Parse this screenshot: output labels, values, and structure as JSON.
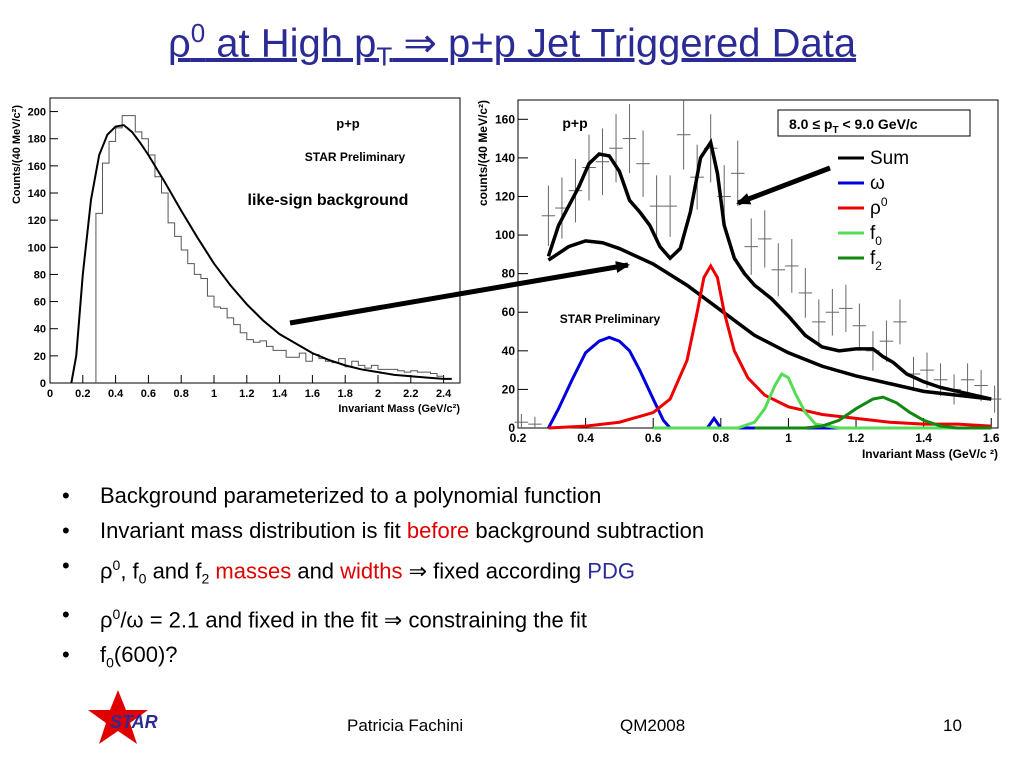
{
  "slide": {
    "title_rho": "ρ",
    "title_sup0": "0",
    "title_mid": " at High p",
    "title_subT": "T",
    "title_arrow": " ⇒ ",
    "title_end": "p+p Jet Triggered Data"
  },
  "bullets": {
    "b1": "Background parameterized to a polynomial function",
    "b2_a": "Invariant mass distribution is fit ",
    "b2_b": "before",
    "b2_c": " background subtraction",
    "b3_a": "ρ",
    "b3_sup": "0",
    "b3_b": ", f",
    "b3_sub0": "0",
    "b3_c": " and f",
    "b3_sub2": "2",
    "b3_d": " masses",
    "b3_e": " and ",
    "b3_f": "widths",
    "b3_g": " ⇒ fixed according ",
    "b3_h": "PDG",
    "b4_a": "ρ",
    "b4_sup": "0",
    "b4_b": "/ω = 2.1 and fixed in the fit ⇒ constraining the fit",
    "b5_a": "f",
    "b5_sub": "0",
    "b5_b": "(600)?"
  },
  "footer": {
    "name": "Patricia Fachini",
    "conference": "QM2008",
    "page": "10",
    "logo_text": "STAR"
  },
  "chart_data": [
    {
      "type": "histogram",
      "panel": "left",
      "labels": {
        "system": "p+p",
        "preliminary": "STAR Preliminary",
        "annotation": "like-sign background",
        "xlabel": "Invariant Mass (GeV/c²)",
        "ylabel": "Counts/(40 MeV/c²)"
      },
      "xlim": [
        0,
        2.5
      ],
      "ylim": [
        0,
        210
      ],
      "xticks": [
        "0",
        "0.2",
        "0.4",
        "0.6",
        "0.8",
        "1",
        "1.2",
        "1.4",
        "1.6",
        "1.8",
        "2",
        "2.2",
        "2.4"
      ],
      "xtick_values": [
        0,
        0.2,
        0.4,
        0.6,
        0.8,
        1,
        1.2,
        1.4,
        1.6,
        1.8,
        2,
        2.2,
        2.4
      ],
      "yticks": [
        "0",
        "20",
        "40",
        "60",
        "80",
        "100",
        "120",
        "140",
        "160",
        "180",
        "200"
      ],
      "ytick_values": [
        0,
        20,
        40,
        60,
        80,
        100,
        120,
        140,
        160,
        180,
        200
      ],
      "hist_edges_start": 0.28,
      "hist_bin_width": 0.04,
      "hist_values": [
        125,
        162,
        178,
        188,
        197,
        197,
        185,
        180,
        168,
        152,
        140,
        118,
        108,
        98,
        88,
        80,
        77,
        64,
        56,
        55,
        48,
        43,
        37,
        32,
        30,
        31,
        27,
        24,
        24,
        19,
        19,
        22,
        16,
        21,
        18,
        16,
        15,
        18,
        12,
        16,
        13,
        11,
        13,
        10,
        10,
        10,
        9,
        8,
        9,
        8,
        8,
        7,
        5
      ],
      "fit_x": [
        0.13,
        0.16,
        0.2,
        0.25,
        0.3,
        0.35,
        0.4,
        0.45,
        0.5,
        0.55,
        0.6,
        0.7,
        0.8,
        0.9,
        1.0,
        1.1,
        1.2,
        1.3,
        1.4,
        1.5,
        1.6,
        1.7,
        1.8,
        1.9,
        2.0,
        2.1,
        2.2,
        2.3,
        2.4,
        2.45
      ],
      "fit_y": [
        0,
        20,
        80,
        135,
        168,
        183,
        189,
        190,
        185,
        177,
        168,
        148,
        127,
        107,
        88,
        72,
        58,
        46,
        36,
        29,
        22,
        17,
        13,
        10,
        8,
        6,
        5,
        4,
        3,
        3
      ]
    },
    {
      "type": "line",
      "panel": "right",
      "labels": {
        "system": "p+p",
        "pt_range": "8.0 ≤ p",
        "pt_sub": "T",
        "pt_range_end": " < 9.0 GeV/c",
        "preliminary": "STAR Preliminary",
        "xlabel": "Invariant Mass (GeV/c ²)",
        "ylabel": "counts/(40 MeV/c²)"
      },
      "xlim": [
        0.2,
        1.62
      ],
      "ylim": [
        0,
        170
      ],
      "xticks": [
        "0.2",
        "0.4",
        "0.6",
        "0.8",
        "1",
        "1.2",
        "1.4",
        "1.6"
      ],
      "xtick_values": [
        0.2,
        0.4,
        0.6,
        0.8,
        1.0,
        1.2,
        1.4,
        1.6
      ],
      "yticks": [
        "0",
        "20",
        "40",
        "60",
        "80",
        "100",
        "120",
        "140",
        "160"
      ],
      "ytick_values": [
        0,
        20,
        40,
        60,
        80,
        100,
        120,
        140,
        160
      ],
      "legend": [
        {
          "name": "Sum",
          "color": "#000000"
        },
        {
          "name": "ω",
          "color": "#0000dd"
        },
        {
          "name": "ρ",
          "sup": "0",
          "color": "#ee0000"
        },
        {
          "name": "f",
          "sub": "0",
          "color": "#55dd55"
        },
        {
          "name": "f",
          "sub": "2",
          "color": "#118811"
        }
      ],
      "data_points": {
        "x": [
          0.21,
          0.25,
          0.29,
          0.33,
          0.37,
          0.41,
          0.45,
          0.49,
          0.53,
          0.57,
          0.61,
          0.65,
          0.69,
          0.73,
          0.77,
          0.81,
          0.85,
          0.89,
          0.93,
          0.97,
          1.01,
          1.05,
          1.09,
          1.13,
          1.17,
          1.21,
          1.25,
          1.29,
          1.33,
          1.37,
          1.41,
          1.45,
          1.49,
          1.53,
          1.57,
          1.61
        ],
        "y": [
          3,
          2,
          110,
          114,
          123,
          135,
          138,
          145,
          150,
          137,
          115,
          115,
          152,
          130,
          145,
          120,
          132,
          94,
          98,
          82,
          84,
          70,
          55,
          60,
          62,
          53,
          40,
          45,
          55,
          28,
          30,
          25,
          20,
          25,
          22,
          15
        ]
      },
      "series": [
        {
          "name": "Sum",
          "color": "#000000",
          "x": [
            0.29,
            0.32,
            0.35,
            0.38,
            0.41,
            0.44,
            0.47,
            0.5,
            0.53,
            0.56,
            0.59,
            0.62,
            0.65,
            0.68,
            0.71,
            0.74,
            0.77,
            0.79,
            0.81,
            0.84,
            0.87,
            0.9,
            0.95,
            1.0,
            1.05,
            1.1,
            1.15,
            1.2,
            1.25,
            1.28,
            1.31,
            1.35,
            1.4,
            1.45,
            1.5,
            1.55,
            1.6
          ],
          "y": [
            89,
            105,
            115,
            125,
            137,
            142,
            141,
            133,
            118,
            112,
            105,
            94,
            88,
            93,
            112,
            140,
            148,
            132,
            105,
            88,
            80,
            74,
            67,
            58,
            48,
            42,
            40,
            41,
            41,
            37,
            34,
            28,
            24,
            21,
            19,
            17,
            15
          ]
        },
        {
          "name": "background",
          "color": "#000000",
          "x": [
            0.29,
            0.35,
            0.4,
            0.45,
            0.5,
            0.6,
            0.7,
            0.8,
            0.9,
            1.0,
            1.1,
            1.2,
            1.3,
            1.4,
            1.5,
            1.6
          ],
          "y": [
            87,
            94,
            97,
            96,
            93,
            85,
            74,
            61,
            48,
            39,
            32,
            27,
            23,
            19,
            17,
            15
          ]
        },
        {
          "name": "ω",
          "color": "#0000dd",
          "x": [
            0.29,
            0.32,
            0.36,
            0.4,
            0.44,
            0.47,
            0.5,
            0.53,
            0.56,
            0.6,
            0.63,
            0.65,
            0.7,
            0.76,
            0.78,
            0.8,
            0.83,
            1.0,
            1.6
          ],
          "y": [
            0,
            10,
            25,
            39,
            45,
            47,
            45,
            40,
            30,
            15,
            4,
            0,
            0,
            0,
            5,
            0,
            0,
            0,
            0
          ]
        },
        {
          "name": "ρ0",
          "color": "#ee0000",
          "x": [
            0.29,
            0.4,
            0.5,
            0.6,
            0.65,
            0.7,
            0.73,
            0.75,
            0.77,
            0.79,
            0.81,
            0.84,
            0.88,
            0.93,
            1.0,
            1.1,
            1.2,
            1.3,
            1.4,
            1.5,
            1.6
          ],
          "y": [
            0,
            1,
            3,
            8,
            15,
            35,
            60,
            78,
            84,
            78,
            60,
            40,
            26,
            17,
            11,
            7,
            5,
            3,
            2,
            2,
            1
          ]
        },
        {
          "name": "f0",
          "color": "#55dd55",
          "x": [
            0.6,
            0.85,
            0.9,
            0.93,
            0.96,
            0.98,
            1.0,
            1.02,
            1.05,
            1.08,
            1.15,
            1.6
          ],
          "y": [
            0,
            0,
            3,
            10,
            22,
            28,
            26,
            18,
            8,
            2,
            0,
            0
          ]
        },
        {
          "name": "f2",
          "color": "#118811",
          "x": [
            0.9,
            1.05,
            1.1,
            1.15,
            1.2,
            1.25,
            1.28,
            1.32,
            1.36,
            1.4,
            1.45,
            1.5,
            1.6
          ],
          "y": [
            0,
            0,
            1,
            4,
            10,
            15,
            16,
            13,
            8,
            4,
            1,
            0,
            0
          ]
        }
      ]
    }
  ]
}
